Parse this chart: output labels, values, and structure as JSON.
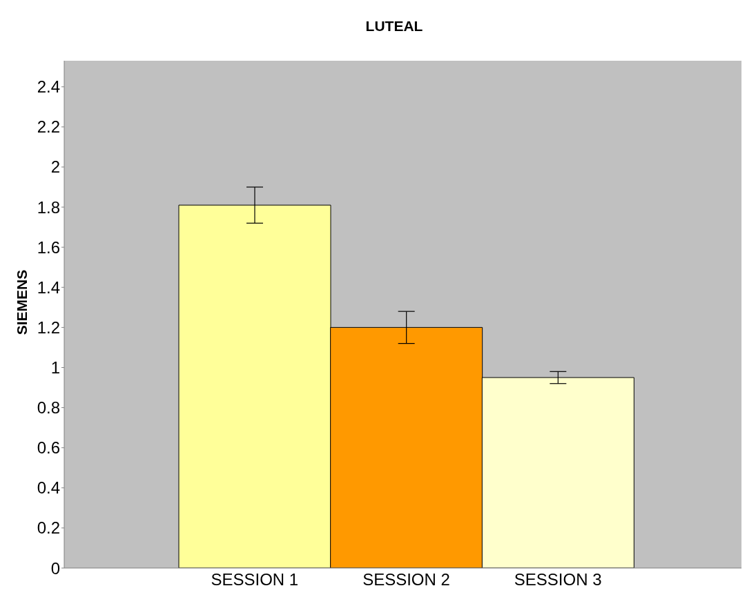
{
  "chart_data": {
    "type": "bar",
    "title": "LUTEAL",
    "ylabel": "SIEMENS",
    "categories": [
      "SESSION 1",
      "SESSION 2",
      "SESSION 3"
    ],
    "values": [
      1.81,
      1.2,
      0.95
    ],
    "errors": [
      0.09,
      0.08,
      0.03
    ],
    "colors": [
      "#ffff99",
      "#ff9900",
      "#ffffcc"
    ],
    "ylim": [
      0,
      2.53
    ],
    "yticks": [
      0,
      0.2,
      0.4,
      0.6,
      0.8,
      1,
      1.2,
      1.4,
      1.6,
      1.8,
      2,
      2.2,
      2.4
    ],
    "grid": false
  }
}
